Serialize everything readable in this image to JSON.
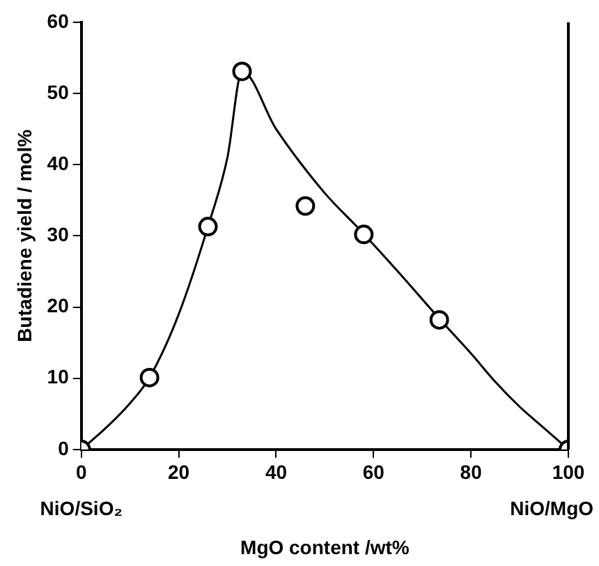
{
  "chart_data": {
    "type": "scatter",
    "xlabel": "MgO content /wt%",
    "ylabel": "Butadiene yield / mol%",
    "annotations": [
      "NiO/SiO₂",
      "NiO/MgO"
    ],
    "xlim": [
      0,
      100
    ],
    "xticks": [
      0,
      20,
      40,
      60,
      80,
      100
    ],
    "ylim": [
      0,
      60
    ],
    "yticks": [
      0,
      10,
      20,
      30,
      40,
      50,
      60
    ],
    "grid": false,
    "legend": false,
    "marker": "circle",
    "series": [
      {
        "color": "#000000",
        "x": [
          0,
          14,
          26,
          33,
          46,
          58,
          73.5,
          100
        ],
        "values": [
          0,
          10.1,
          31.3,
          53.1,
          34.2,
          30.2,
          18.2,
          0
        ]
      },
      {
        "type": "line",
        "color": "#000000",
        "marker": "none",
        "x": [
          0,
          5,
          10,
          14,
          20,
          26,
          30,
          33,
          40,
          50,
          57,
          65,
          74,
          80,
          85,
          90,
          95,
          100
        ],
        "values": [
          0,
          3,
          6.5,
          10.1,
          19,
          31.3,
          41,
          53.1,
          45,
          36,
          31,
          25,
          18,
          13.5,
          9.5,
          6,
          3,
          0
        ]
      }
    ]
  }
}
